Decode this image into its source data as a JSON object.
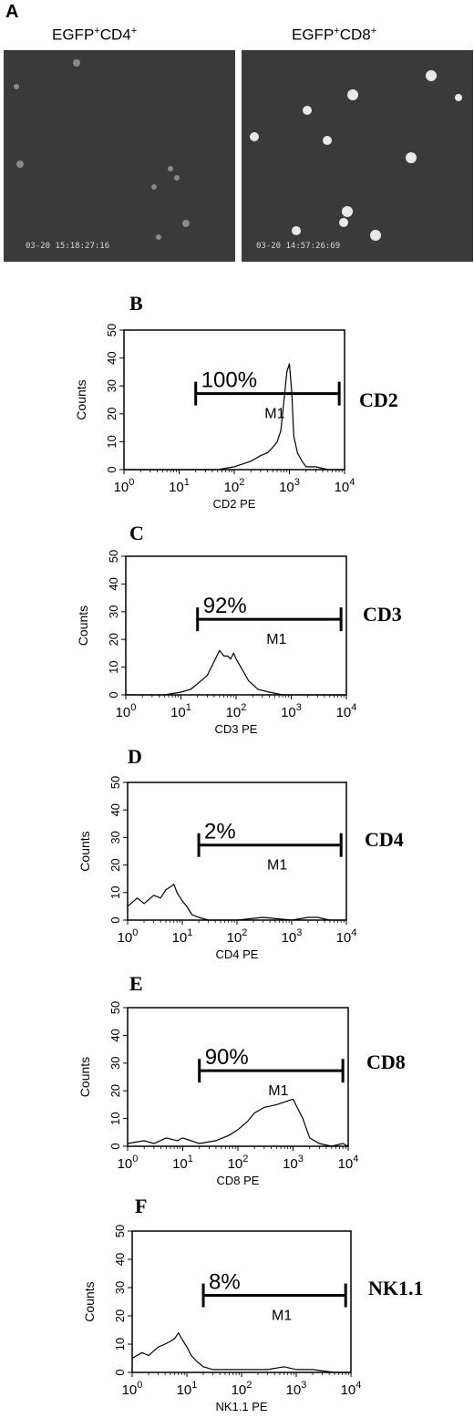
{
  "panel_a": {
    "letter": "A",
    "images": [
      {
        "title_main": "EGFP",
        "title_sup1": "+",
        "title_mid": "CD4",
        "title_sup2": "+",
        "timestamp": "03-20  15:18:27:16"
      },
      {
        "title_main": "EGFP",
        "title_sup1": "+",
        "title_mid": "CD8",
        "title_sup2": "+",
        "timestamp": "03-20  14:57:26:69"
      }
    ]
  },
  "chart_data": [
    {
      "type": "histogram",
      "panel_letter": "B",
      "marker_label": "CD2",
      "ylabel": "Counts",
      "xlabel": "CD2 PE",
      "xscale": "log",
      "xlim": [
        1,
        10000
      ],
      "ylim": [
        0,
        50
      ],
      "yticks": [
        0,
        10,
        20,
        30,
        40,
        50
      ],
      "gate": {
        "name": "M1",
        "start": 20,
        "end": 8000,
        "percent": "100%"
      },
      "x": [
        1,
        10,
        50,
        100,
        200,
        300,
        400,
        500,
        600,
        700,
        800,
        900,
        1000,
        1100,
        1200,
        1400,
        1700,
        2000,
        3000,
        5000,
        10000
      ],
      "y": [
        0,
        0,
        0,
        1,
        3,
        5,
        6,
        8,
        10,
        14,
        25,
        35,
        38,
        28,
        12,
        6,
        3,
        1,
        1,
        0,
        0
      ]
    },
    {
      "type": "histogram",
      "panel_letter": "C",
      "marker_label": "CD3",
      "ylabel": "Counts",
      "xlabel": "CD3 PE",
      "xscale": "log",
      "xlim": [
        1,
        10000
      ],
      "ylim": [
        0,
        50
      ],
      "yticks": [
        0,
        10,
        20,
        30,
        40,
        50
      ],
      "gate": {
        "name": "M1",
        "start": 20,
        "end": 8000,
        "percent": "92%"
      },
      "x": [
        1,
        5,
        10,
        15,
        20,
        30,
        40,
        50,
        60,
        70,
        80,
        90,
        100,
        130,
        170,
        250,
        400,
        700,
        1000,
        10000
      ],
      "y": [
        0,
        0,
        1,
        2,
        4,
        7,
        12,
        16,
        14,
        14,
        13,
        15,
        13,
        9,
        5,
        2,
        1,
        0,
        0,
        0
      ]
    },
    {
      "type": "histogram",
      "panel_letter": "D",
      "marker_label": "CD4",
      "ylabel": "Counts",
      "xlabel": "CD4 PE",
      "xscale": "log",
      "xlim": [
        1,
        10000
      ],
      "ylim": [
        0,
        50
      ],
      "yticks": [
        0,
        10,
        20,
        30,
        40,
        50
      ],
      "gate": {
        "name": "M1",
        "start": 20,
        "end": 8000,
        "percent": "2%"
      },
      "x": [
        1,
        1.5,
        2,
        3,
        4,
        5,
        6,
        7,
        8,
        10,
        12,
        15,
        20,
        30,
        100,
        300,
        1000,
        2000,
        3000,
        5000,
        10000
      ],
      "y": [
        5,
        8,
        6,
        9,
        8,
        11,
        12,
        13,
        10,
        7,
        5,
        2,
        1,
        0,
        0,
        1,
        0,
        1,
        1,
        0,
        0
      ]
    },
    {
      "type": "histogram",
      "panel_letter": "E",
      "marker_label": "CD8",
      "ylabel": "Counts",
      "xlabel": "CD8 PE",
      "xscale": "log",
      "xlim": [
        1,
        10000
      ],
      "ylim": [
        0,
        50
      ],
      "yticks": [
        0,
        10,
        20,
        30,
        40,
        50
      ],
      "gate": {
        "name": "M1",
        "start": 20,
        "end": 8000,
        "percent": "90%"
      },
      "x": [
        1,
        2,
        3,
        5,
        8,
        10,
        20,
        40,
        70,
        100,
        150,
        200,
        300,
        500,
        700,
        1000,
        1500,
        2000,
        3000,
        5000,
        8000,
        10000
      ],
      "y": [
        1,
        2,
        1,
        3,
        2,
        3,
        1,
        2,
        4,
        6,
        9,
        12,
        14,
        15,
        16,
        17,
        10,
        3,
        1,
        0,
        1,
        0
      ]
    },
    {
      "type": "histogram",
      "panel_letter": "F",
      "marker_label": "NK1.1",
      "ylabel": "Counts",
      "xlabel": "NK1.1 PE",
      "xscale": "log",
      "xlim": [
        1,
        10000
      ],
      "ylim": [
        0,
        50
      ],
      "yticks": [
        0,
        10,
        20,
        30,
        40,
        50
      ],
      "gate": {
        "name": "M1",
        "start": 20,
        "end": 8000,
        "percent": "8%"
      },
      "x": [
        1,
        1.5,
        2,
        3,
        4,
        5,
        6,
        7,
        8,
        10,
        12,
        15,
        20,
        30,
        50,
        100,
        300,
        600,
        1000,
        2000,
        5000,
        10000
      ],
      "y": [
        5,
        7,
        6,
        9,
        10,
        11,
        12,
        14,
        12,
        9,
        6,
        4,
        2,
        1,
        1,
        1,
        1,
        2,
        1,
        1,
        0,
        0
      ]
    }
  ]
}
